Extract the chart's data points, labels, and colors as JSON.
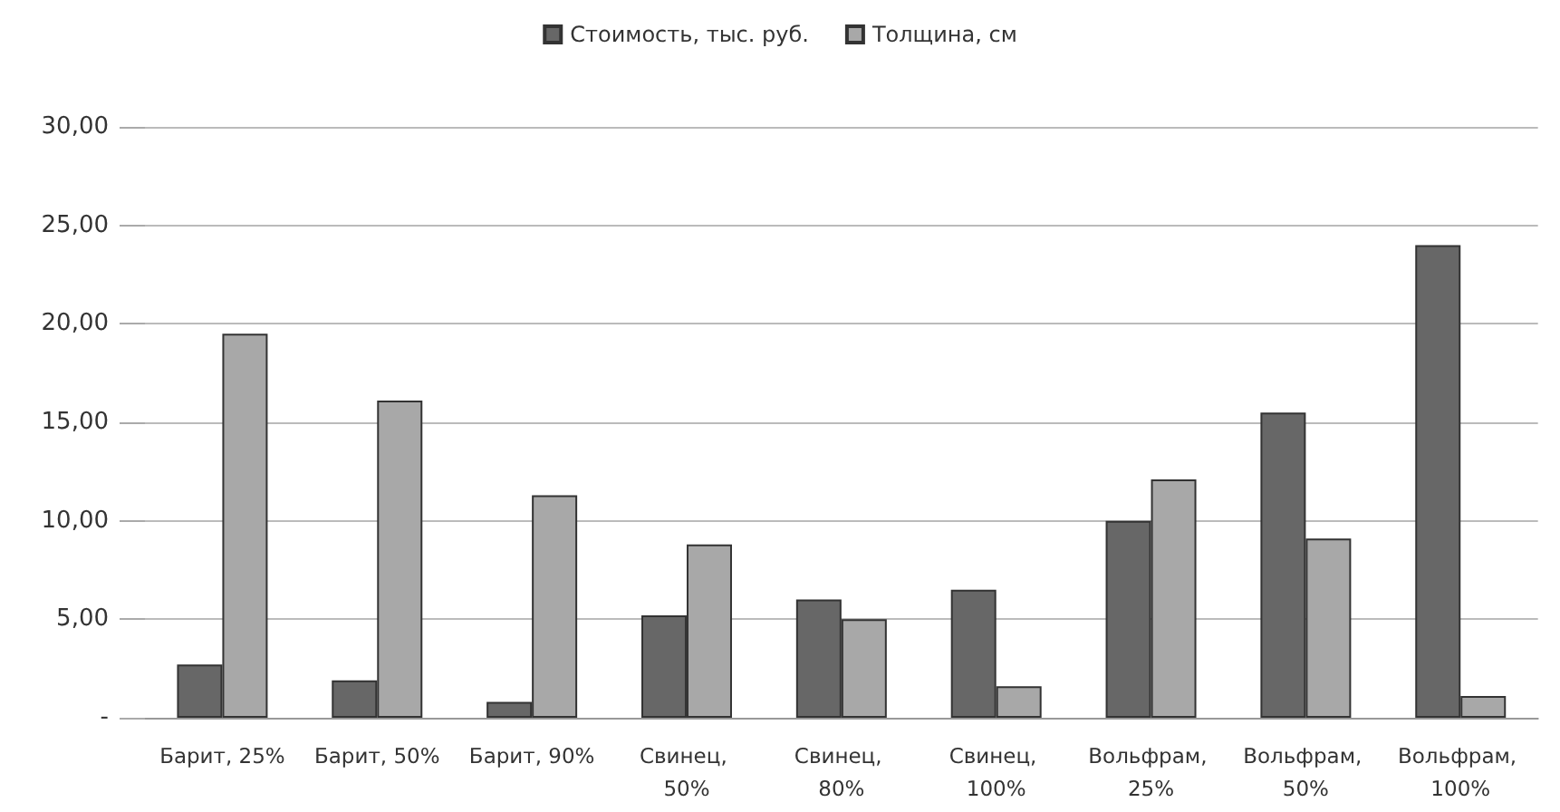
{
  "chart_data": {
    "type": "bar",
    "categories": [
      "Барит, 25%",
      "Барит, 50%",
      "Барит, 90%",
      "Свинец, 50%",
      "Свинец, 80%",
      "Свинец, 100%",
      "Вольфрам, 25%",
      "Вольфрам, 50%",
      "Вольфрам, 100%"
    ],
    "series": [
      {
        "name": "Стоимость, тыс. руб.",
        "color": "#676767",
        "values": [
          2.7,
          1.9,
          0.8,
          5.2,
          6.0,
          6.5,
          10.0,
          15.5,
          24.0
        ]
      },
      {
        "name": "Толщина, см",
        "color": "#a8a8a8",
        "values": [
          19.5,
          16.1,
          11.3,
          8.8,
          5.0,
          1.6,
          12.1,
          9.1,
          1.1
        ]
      }
    ],
    "ylim": [
      0,
      30
    ],
    "yticks": [
      {
        "value": 0,
        "label": "-"
      },
      {
        "value": 5,
        "label": "5,00"
      },
      {
        "value": 10,
        "label": "10,00"
      },
      {
        "value": 15,
        "label": "15,00"
      },
      {
        "value": 20,
        "label": "20,00"
      },
      {
        "value": 25,
        "label": "25,00"
      },
      {
        "value": 30,
        "label": "30,00"
      }
    ],
    "grid": "y",
    "legend": "top"
  }
}
